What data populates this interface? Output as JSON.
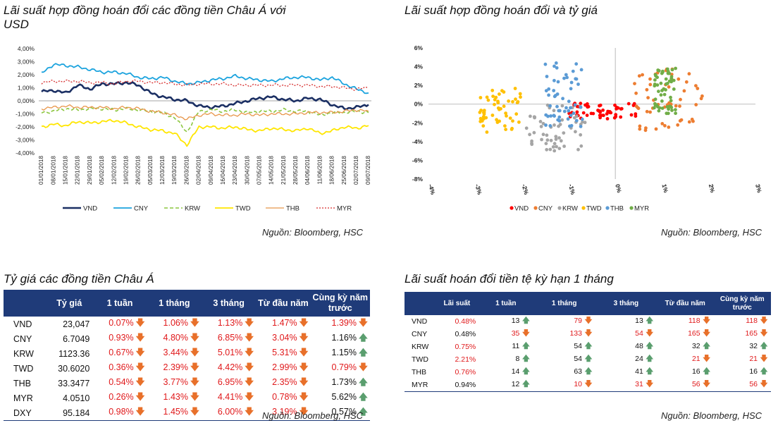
{
  "titles": {
    "chart1_line1": "Lãi suất hợp đồng hoán đổi các đồng tiền Châu Á với",
    "chart1_line2": "USD",
    "chart2": "Lãi suất hợp đồng hoán đổi và tỷ giá",
    "table1": "Tỷ giá các đồng tiền Châu Á",
    "table2": "Lãi suất hoán đổi tiền tệ kỳ hạn 1 tháng"
  },
  "source": "Nguồn: Bloomberg, HSC",
  "arrows": {
    "down": "🡇",
    "up": "🡅"
  },
  "colors": {
    "header_bg": "#1f3b79",
    "negative_text": "#e0191b",
    "arrow_down": "#e8702a",
    "arrow_up": "#5a9e6e"
  },
  "chart_data": [
    {
      "type": "line",
      "ylim": [
        -4.0,
        4.0
      ],
      "yticks": [
        "4,00%",
        "3,00%",
        "2,00%",
        "1,00%",
        "0,00%",
        "-1,00%",
        "-2,00%",
        "-3,00%",
        "-4,00%"
      ],
      "x": [
        "01/01/2018",
        "08/01/2018",
        "15/01/2018",
        "22/01/2018",
        "29/01/2018",
        "05/02/2018",
        "12/02/2018",
        "19/02/2018",
        "26/02/2018",
        "05/03/2018",
        "12/03/2018",
        "19/03/2018",
        "26/03/2018",
        "02/04/2018",
        "09/04/2018",
        "16/04/2018",
        "23/04/2018",
        "30/04/2018",
        "07/05/2018",
        "14/05/2018",
        "21/05/2018",
        "28/05/2018",
        "04/06/2018",
        "11/06/2018",
        "18/06/2018",
        "25/06/2018",
        "02/07/2018",
        "09/07/2018"
      ],
      "legend_position": "bottom",
      "series": [
        {
          "name": "VND",
          "color": "#1b2f63",
          "style": "solid",
          "width": 2.6,
          "values": [
            0.7,
            0.8,
            0.6,
            1.2,
            0.9,
            1.3,
            1.3,
            1.4,
            1.2,
            0.6,
            0.3,
            0.1,
            0.0,
            -0.4,
            -0.5,
            -0.4,
            -0.2,
            0.0,
            0.2,
            0.3,
            0.1,
            0.0,
            0.2,
            0.1,
            -0.3,
            -0.6,
            -0.5,
            -0.3
          ]
        },
        {
          "name": "CNY",
          "color": "#1ba3de",
          "style": "solid",
          "width": 1.8,
          "values": [
            2.1,
            2.8,
            2.7,
            2.6,
            2.4,
            2.2,
            2.2,
            2.1,
            1.8,
            1.7,
            1.8,
            1.5,
            1.3,
            1.4,
            1.6,
            1.7,
            1.9,
            1.7,
            1.6,
            1.5,
            1.7,
            1.8,
            1.8,
            1.6,
            1.8,
            1.3,
            0.9,
            0.6
          ]
        },
        {
          "name": "KRW",
          "color": "#8cc63f",
          "style": "dashed",
          "width": 1.6,
          "values": [
            -0.9,
            -0.8,
            -0.6,
            -0.7,
            -0.6,
            -0.6,
            -0.7,
            -0.6,
            -0.7,
            -0.8,
            -0.9,
            -1.3,
            -2.4,
            -0.8,
            -0.7,
            -0.8,
            -0.7,
            -0.9,
            -0.8,
            -0.8,
            -0.7,
            -0.8,
            -0.8,
            -1.1,
            -0.9,
            -0.9,
            -0.8,
            -0.9
          ]
        },
        {
          "name": "TWD",
          "color": "#ffe600",
          "style": "solid",
          "width": 1.8,
          "values": [
            -2.0,
            -1.8,
            -1.9,
            -1.6,
            -1.7,
            -1.6,
            -1.5,
            -1.7,
            -2.0,
            -2.2,
            -2.3,
            -2.5,
            -3.4,
            -2.0,
            -2.0,
            -2.1,
            -2.0,
            -2.2,
            -2.3,
            -2.1,
            -2.2,
            -2.3,
            -2.1,
            -2.5,
            -2.3,
            -2.0,
            -2.1,
            -1.9
          ]
        },
        {
          "name": "THB",
          "color": "#e8964a",
          "style": "solid",
          "width": 1.3,
          "values": [
            -0.6,
            -0.5,
            -0.4,
            -0.5,
            -0.5,
            -0.5,
            -0.6,
            -0.5,
            -0.6,
            -0.8,
            -0.9,
            -1.1,
            -1.4,
            -1.1,
            -1.0,
            -1.1,
            -1.1,
            -1.0,
            -1.1,
            -1.0,
            -1.0,
            -1.0,
            -0.9,
            -0.9,
            -0.9,
            -0.8,
            -0.7,
            -0.8
          ]
        },
        {
          "name": "MYR",
          "color": "#d62d2d",
          "style": "dotted",
          "width": 1.3,
          "values": [
            1.4,
            1.5,
            1.5,
            1.5,
            1.4,
            1.4,
            1.3,
            1.5,
            1.5,
            1.4,
            1.4,
            1.3,
            1.2,
            1.3,
            1.3,
            1.3,
            1.2,
            1.2,
            1.2,
            1.2,
            1.2,
            1.2,
            1.2,
            1.1,
            1.1,
            1.0,
            0.9,
            1.0
          ]
        }
      ]
    },
    {
      "type": "scatter",
      "xlim": [
        -4.0,
        3.0
      ],
      "ylim": [
        -8.0,
        6.0
      ],
      "xticks": [
        "-4%",
        "-3%",
        "-2%",
        "-1%",
        "0%",
        "1%",
        "2%",
        "3%"
      ],
      "yticks": [
        "6%",
        "4%",
        "2%",
        "0%",
        "-2%",
        "-4%",
        "-6%",
        "-8%"
      ],
      "legend_position": "bottom",
      "series": [
        {
          "name": "VND",
          "color": "#ff0000",
          "cluster": {
            "x": [
              -1.0,
              0.5
            ],
            "y": [
              -1.6,
              0.1
            ]
          }
        },
        {
          "name": "CNY",
          "color": "#ed7d31",
          "cluster": {
            "x": [
              0.4,
              1.9
            ],
            "y": [
              -2.8,
              3.8
            ]
          }
        },
        {
          "name": "KRW",
          "color": "#a5a5a5",
          "cluster": {
            "x": [
              -1.9,
              -0.6
            ],
            "y": [
              -5.0,
              0.0
            ]
          }
        },
        {
          "name": "TWD",
          "color": "#ffc000",
          "cluster": {
            "x": [
              -2.9,
              -2.0
            ],
            "y": [
              -3.0,
              1.7
            ]
          }
        },
        {
          "name": "THB",
          "color": "#5b9bd5",
          "cluster": {
            "x": [
              -1.5,
              -0.7
            ],
            "y": [
              -2.4,
              4.4
            ]
          }
        },
        {
          "name": "MYR",
          "color": "#70ad47",
          "cluster": {
            "x": [
              0.8,
              1.3
            ],
            "y": [
              -1.0,
              3.9
            ]
          }
        }
      ]
    }
  ],
  "table1": {
    "headers": [
      "",
      "Tỷ giá",
      "1 tuần",
      "1 tháng",
      "3 tháng",
      "Từ đầu năm",
      "Cùng kỳ năm trước"
    ],
    "rows": [
      {
        "cur": "VND",
        "rate": "23,047",
        "w1": "0.07%",
        "w1d": "down",
        "m1": "1.06%",
        "m1d": "down",
        "m3": "1.13%",
        "m3d": "down",
        "ytd": "1.47%",
        "ytdd": "down",
        "yoy": "1.39%",
        "yoyd": "down"
      },
      {
        "cur": "CNY",
        "rate": "6.7049",
        "w1": "0.93%",
        "w1d": "down",
        "m1": "4.80%",
        "m1d": "down",
        "m3": "6.85%",
        "m3d": "down",
        "ytd": "3.04%",
        "ytdd": "down",
        "yoy": "1.16%",
        "yoyd": "up"
      },
      {
        "cur": "KRW",
        "rate": "1123.36",
        "w1": "0.67%",
        "w1d": "down",
        "m1": "3.44%",
        "m1d": "down",
        "m3": "5.01%",
        "m3d": "down",
        "ytd": "5.31%",
        "ytdd": "down",
        "yoy": "1.15%",
        "yoyd": "up"
      },
      {
        "cur": "TWD",
        "rate": "30.6020",
        "w1": "0.36%",
        "w1d": "down",
        "m1": "2.39%",
        "m1d": "down",
        "m3": "4.42%",
        "m3d": "down",
        "ytd": "2.99%",
        "ytdd": "down",
        "yoy": "0.79%",
        "yoyd": "down"
      },
      {
        "cur": "THB",
        "rate": "33.3477",
        "w1": "0.54%",
        "w1d": "down",
        "m1": "3.77%",
        "m1d": "down",
        "m3": "6.95%",
        "m3d": "down",
        "ytd": "2.35%",
        "ytdd": "down",
        "yoy": "1.73%",
        "yoyd": "up"
      },
      {
        "cur": "MYR",
        "rate": "4.0510",
        "w1": "0.26%",
        "w1d": "down",
        "m1": "1.43%",
        "m1d": "down",
        "m3": "4.41%",
        "m3d": "down",
        "ytd": "0.78%",
        "ytdd": "down",
        "yoy": "5.62%",
        "yoyd": "up"
      },
      {
        "cur": "DXY",
        "rate": "95.184",
        "w1": "0.98%",
        "w1d": "down",
        "m1": "1.45%",
        "m1d": "down",
        "m3": "6.00%",
        "m3d": "down",
        "ytd": "3.19%",
        "ytdd": "down",
        "yoy": "0.57%",
        "yoyd": "up"
      }
    ]
  },
  "table2": {
    "headers": [
      "",
      "Lãi suất",
      "1 tuần",
      "1 tháng",
      "3 tháng",
      "Từ đầu năm",
      "Cùng kỳ năm trước"
    ],
    "rows": [
      {
        "cur": "VND",
        "rate": "0.48%",
        "rate_red": true,
        "w1": "13",
        "w1d": "up",
        "w1r": false,
        "m1": "79",
        "m1d": "down",
        "m1r": true,
        "m3": "13",
        "m3d": "up",
        "m3r": false,
        "ytd": "118",
        "ytdd": "down",
        "ytdr": true,
        "yoy": "118",
        "yoyd": "down",
        "yoyr": true
      },
      {
        "cur": "CNY",
        "rate": "0.48%",
        "rate_red": false,
        "w1": "35",
        "w1d": "down",
        "w1r": true,
        "m1": "133",
        "m1d": "down",
        "m1r": true,
        "m3": "54",
        "m3d": "down",
        "m3r": true,
        "ytd": "165",
        "ytdd": "down",
        "ytdr": true,
        "yoy": "165",
        "yoyd": "down",
        "yoyr": true
      },
      {
        "cur": "KRW",
        "rate": "0.75%",
        "rate_red": true,
        "w1": "11",
        "w1d": "up",
        "w1r": false,
        "m1": "54",
        "m1d": "up",
        "m1r": false,
        "m3": "48",
        "m3d": "up",
        "m3r": false,
        "ytd": "32",
        "ytdd": "up",
        "ytdr": false,
        "yoy": "32",
        "yoyd": "up",
        "yoyr": false
      },
      {
        "cur": "TWD",
        "rate": "2.21%",
        "rate_red": true,
        "w1": "8",
        "w1d": "up",
        "w1r": false,
        "m1": "54",
        "m1d": "up",
        "m1r": false,
        "m3": "24",
        "m3d": "up",
        "m3r": false,
        "ytd": "21",
        "ytdd": "down",
        "ytdr": true,
        "yoy": "21",
        "yoyd": "down",
        "yoyr": true
      },
      {
        "cur": "THB",
        "rate": "0.76%",
        "rate_red": true,
        "w1": "14",
        "w1d": "up",
        "w1r": false,
        "m1": "63",
        "m1d": "up",
        "m1r": false,
        "m3": "41",
        "m3d": "up",
        "m3r": false,
        "ytd": "16",
        "ytdd": "up",
        "ytdr": false,
        "yoy": "16",
        "yoyd": "up",
        "yoyr": false
      },
      {
        "cur": "MYR",
        "rate": "0.94%",
        "rate_red": false,
        "w1": "12",
        "w1d": "up",
        "w1r": false,
        "m1": "10",
        "m1d": "down",
        "m1r": true,
        "m3": "31",
        "m3d": "down",
        "m3r": true,
        "ytd": "56",
        "ytdd": "down",
        "ytdr": true,
        "yoy": "56",
        "yoyd": "down",
        "yoyr": true
      }
    ]
  }
}
